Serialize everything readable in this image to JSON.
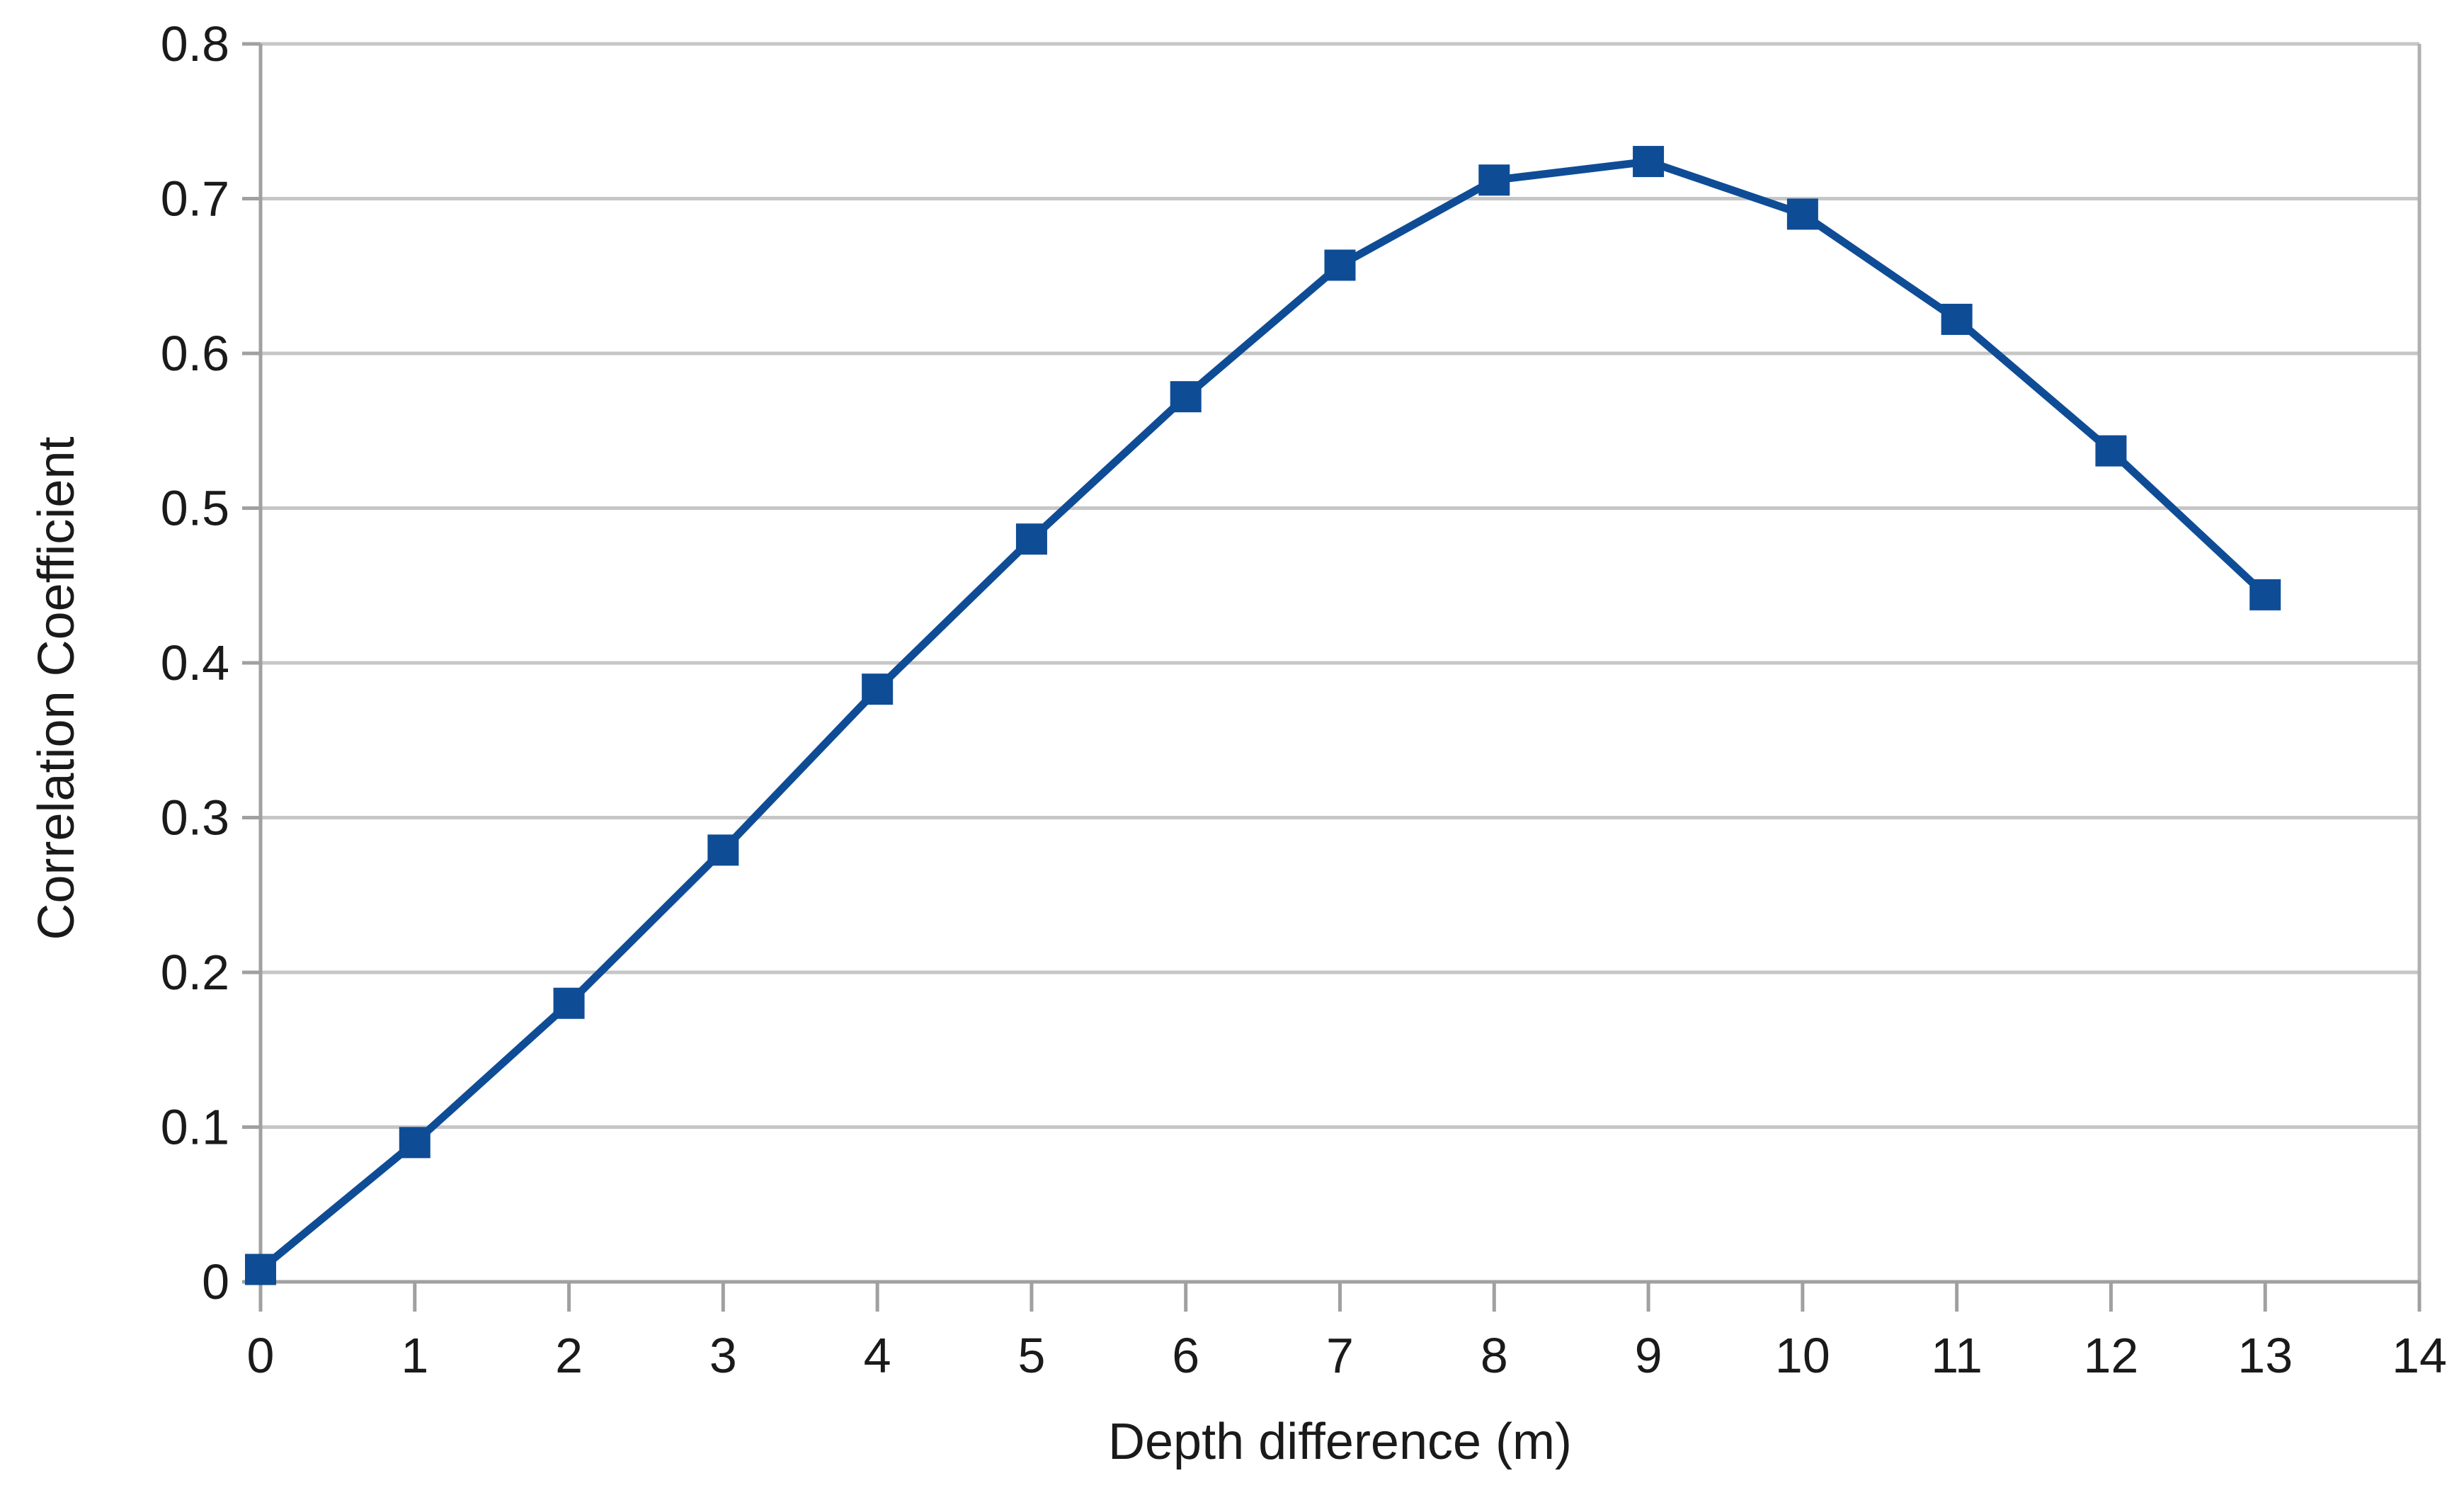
{
  "chart_data": {
    "type": "line",
    "title": "",
    "xlabel": "Depth difference (m)",
    "ylabel": "Correlation Coefficient",
    "x": [
      0,
      1,
      2,
      3,
      4,
      5,
      6,
      7,
      8,
      9,
      10,
      11,
      12,
      13
    ],
    "values": [
      0.008,
      0.09,
      0.18,
      0.279,
      0.383,
      0.48,
      0.572,
      0.657,
      0.712,
      0.724,
      0.69,
      0.622,
      0.537,
      0.444
    ],
    "xlim": [
      0,
      14
    ],
    "ylim": [
      0,
      0.8
    ],
    "x_ticks": {
      "values": [
        0,
        1,
        2,
        3,
        4,
        5,
        6,
        7,
        8,
        9,
        10,
        11,
        12,
        13,
        14
      ],
      "labels": [
        "0",
        "1",
        "2",
        "3",
        "4",
        "5",
        "6",
        "7",
        "8",
        "9",
        "10",
        "11",
        "12",
        "13",
        "14"
      ]
    },
    "y_ticks": {
      "values": [
        0,
        0.1,
        0.2,
        0.3,
        0.4,
        0.5,
        0.6,
        0.7,
        0.8
      ],
      "labels": [
        "0",
        "0.1",
        "0.2",
        "0.3",
        "0.4",
        "0.5",
        "0.6",
        "0.7",
        "0.8"
      ]
    },
    "grid": "horizontal-only",
    "legend": "none",
    "marker": "square",
    "colors": {
      "series": "#0F4C96",
      "gridline": "#C6C6C6",
      "axis": "#A0A0A0",
      "plot_border": "#B0B0B0",
      "text": "#1A1A1A",
      "background": "#FFFFFF"
    }
  }
}
